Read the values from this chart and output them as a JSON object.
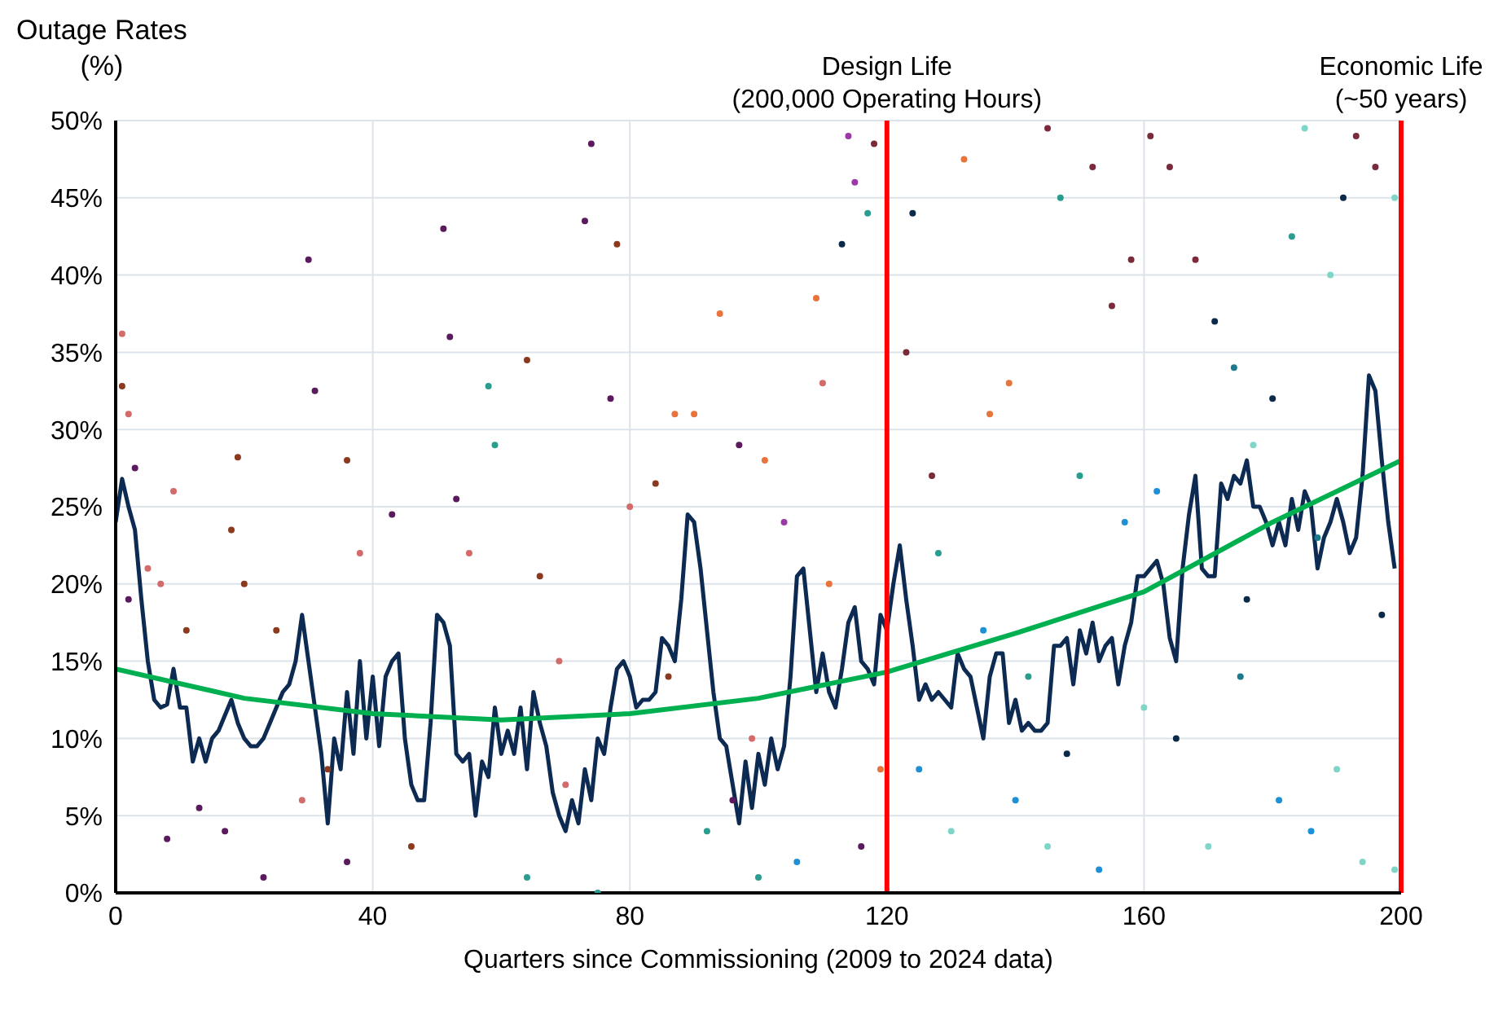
{
  "chart_data": {
    "type": "scatter",
    "ylabel": "Outage Rates\n(%)",
    "xlabel": "Quarters since Commissioning (2009 to 2024 data)",
    "xlim": [
      0,
      200
    ],
    "xticks": [
      0,
      40,
      80,
      120,
      160,
      200
    ],
    "ylim": [
      0,
      50
    ],
    "yticks": [
      {
        "value": 0,
        "label": "0%"
      },
      {
        "value": 5,
        "label": "5%"
      },
      {
        "value": 10,
        "label": "10%"
      },
      {
        "value": 15,
        "label": "15%"
      },
      {
        "value": 20,
        "label": "20%"
      },
      {
        "value": 25,
        "label": "25%"
      },
      {
        "value": 30,
        "label": "30%"
      },
      {
        "value": 35,
        "label": "35%"
      },
      {
        "value": 40,
        "label": "40%"
      },
      {
        "value": 45,
        "label": "45%"
      },
      {
        "value": 50,
        "label": "50%"
      }
    ],
    "grid": true,
    "ref_lines": [
      {
        "axis": "x",
        "value": 120,
        "label": "Design Life\n(200,000 Operating Hours)",
        "color": "#ff0000"
      },
      {
        "axis": "x",
        "value": 200,
        "label": "Economic Life\n(~50 years)",
        "color": "#ff0000"
      }
    ],
    "series": [
      {
        "marker": "circle",
        "x": [
          1,
          1,
          2,
          3,
          2,
          5,
          7,
          9,
          11,
          8,
          13,
          17,
          19,
          18,
          20,
          23,
          25,
          30,
          31,
          33,
          36,
          38,
          29,
          36,
          43,
          46,
          51,
          52,
          53,
          55,
          58,
          59,
          64,
          66,
          69,
          73,
          74,
          77,
          78,
          80,
          64,
          75,
          70,
          84,
          87,
          90,
          94,
          97,
          101,
          104,
          109,
          110,
          113,
          114,
          115,
          117,
          118,
          111,
          99,
          92,
          100,
          106,
          116,
          119,
          96,
          86,
          124,
          127,
          123,
          132,
          136,
          139,
          145,
          147,
          152,
          150,
          155,
          158,
          140,
          130,
          125,
          135,
          142,
          148,
          153,
          160,
          128,
          157,
          145,
          161,
          164,
          168,
          171,
          174,
          177,
          180,
          183,
          185,
          189,
          191,
          193,
          196,
          199,
          165,
          170,
          175,
          181,
          186,
          190,
          194,
          197,
          176,
          162,
          187,
          199
        ],
        "values": [
          36.2,
          32.8,
          31,
          27.5,
          19,
          21,
          20,
          26,
          17,
          3.5,
          5.5,
          4,
          28.2,
          23.5,
          20,
          1,
          17,
          41,
          32.5,
          8,
          28,
          22,
          6,
          2,
          24.5,
          3,
          43,
          36,
          25.5,
          22,
          32.8,
          29,
          34.5,
          20.5,
          15,
          43.5,
          48.5,
          32,
          42,
          25,
          1,
          0,
          7,
          26.5,
          31,
          31,
          37.5,
          29,
          28,
          24,
          38.5,
          33,
          42,
          49,
          46,
          44,
          48.5,
          20,
          10,
          4,
          1,
          2,
          3,
          8,
          6,
          14,
          44,
          27,
          35,
          47.5,
          31,
          33,
          49.5,
          45,
          47,
          27,
          38,
          41,
          6,
          4,
          8,
          17,
          14,
          9,
          1.5,
          12,
          22,
          24,
          3,
          49,
          47,
          41,
          37,
          34,
          29,
          32,
          42.5,
          49.5,
          40,
          45,
          49,
          47,
          45,
          10,
          3,
          14,
          6,
          4,
          8,
          2,
          18,
          19,
          26,
          23,
          1.5
        ],
        "colors": [
          "#d36b6b",
          "#8b3a1e",
          "#d36b6b",
          "#5b1a5e",
          "#5b1a5e",
          "#d36b6b",
          "#d36b6b",
          "#d36b6b",
          "#8b3a1e",
          "#5b1a5e",
          "#5b1a5e",
          "#5b1a5e",
          "#8b3a1e",
          "#8b3a1e",
          "#8b3a1e",
          "#5b1a5e",
          "#8b3a1e",
          "#5b1a5e",
          "#5b1a5e",
          "#8b3a1e",
          "#8b3a1e",
          "#d36b6b",
          "#d36b6b",
          "#5b1a5e",
          "#5b1a5e",
          "#8b3a1e",
          "#5b1a5e",
          "#5b1a5e",
          "#5b1a5e",
          "#d36b6b",
          "#2a9d8f",
          "#2a9d8f",
          "#8b3a1e",
          "#8b3a1e",
          "#d36b6b",
          "#5b1a5e",
          "#5b1a5e",
          "#5b1a5e",
          "#8b3a1e",
          "#d36b6b",
          "#2a9d8f",
          "#2a9d8f",
          "#d36b6b",
          "#8b3a1e",
          "#e8743b",
          "#e8743b",
          "#e8743b",
          "#5b1a5e",
          "#e8743b",
          "#9b3aa6",
          "#e8743b",
          "#d36b6b",
          "#0b2a4a",
          "#9b3aa6",
          "#9b3aa6",
          "#2a9d8f",
          "#7a2a3a",
          "#e8743b",
          "#d36b6b",
          "#2a9d8f",
          "#2a9d8f",
          "#1e90d6",
          "#5b1a5e",
          "#e8743b",
          "#5b1a5e",
          "#8b3a1e",
          "#0b2a4a",
          "#7a2a3a",
          "#7a2a3a",
          "#e8743b",
          "#e8743b",
          "#e8743b",
          "#7a2a3a",
          "#2a9d8f",
          "#7a2a3a",
          "#2a9d8f",
          "#7a2a3a",
          "#7a2a3a",
          "#1e90d6",
          "#7fd6c8",
          "#1e90d6",
          "#1e90d6",
          "#2a9d8f",
          "#0b2a4a",
          "#1e90d6",
          "#7fd6c8",
          "#2a9d8f",
          "#1e90d6",
          "#7fd6c8",
          "#7a2a3a",
          "#7a2a3a",
          "#7a2a3a",
          "#0b2a4a",
          "#1b7a8c",
          "#7fd6c8",
          "#0b2a4a",
          "#2a9d8f",
          "#7fd6c8",
          "#7fd6c8",
          "#0b2a4a",
          "#7a2a3a",
          "#7a2a3a",
          "#7fd6c8",
          "#0b2a4a",
          "#7fd6c8",
          "#1b7a8c",
          "#1e90d6",
          "#1e90d6",
          "#7fd6c8",
          "#7fd6c8",
          "#0b2a4a",
          "#0b2a4a",
          "#1e90d6",
          "#1b7a8c",
          "#7fd6c8"
        ]
      },
      {
        "type": "line",
        "marker": "none",
        "color": "#0d2b52",
        "x": [
          0,
          1,
          2,
          3,
          4,
          5,
          6,
          7,
          8,
          9,
          10,
          11,
          12,
          13,
          14,
          15,
          16,
          17,
          18,
          19,
          20,
          21,
          22,
          23,
          24,
          25,
          26,
          27,
          28,
          29,
          30,
          31,
          32,
          33,
          34,
          35,
          36,
          37,
          38,
          39,
          40,
          41,
          42,
          43,
          44,
          45,
          46,
          47,
          48,
          49,
          50,
          51,
          52,
          53,
          54,
          55,
          56,
          57,
          58,
          59,
          60,
          61,
          62,
          63,
          64,
          65,
          66,
          67,
          68,
          69,
          70,
          71,
          72,
          73,
          74,
          75,
          76,
          77,
          78,
          79,
          80,
          81,
          82,
          83,
          84,
          85,
          86,
          87,
          88,
          89,
          90,
          91,
          92,
          93,
          94,
          95,
          96,
          97,
          98,
          99,
          100,
          101,
          102,
          103,
          104,
          105,
          106,
          107,
          108,
          109,
          110,
          111,
          112,
          113,
          114,
          115,
          116,
          117,
          118,
          119,
          120,
          121,
          122,
          123,
          124,
          125,
          126,
          127,
          128,
          129,
          130,
          131,
          132,
          133,
          134,
          135,
          136,
          137,
          138,
          139,
          140,
          141,
          142,
          143,
          144,
          145,
          146,
          147,
          148,
          149,
          150,
          151,
          152,
          153,
          154,
          155,
          156,
          157,
          158,
          159,
          160,
          161,
          162,
          163,
          164,
          165,
          166,
          167,
          168,
          169,
          170,
          171,
          172,
          173,
          174,
          175,
          176,
          177,
          178,
          179,
          180,
          181,
          182,
          183,
          184,
          185,
          186,
          187,
          188,
          189,
          190,
          191,
          192,
          193,
          194,
          195,
          196,
          197,
          198,
          199
        ],
        "values": [
          24,
          26.8,
          25,
          23.5,
          19,
          15,
          12.5,
          12,
          12.2,
          14.5,
          12,
          12,
          8.5,
          10,
          8.5,
          10,
          10.5,
          11.5,
          12.5,
          11,
          10,
          9.5,
          9.5,
          10,
          11,
          12,
          13,
          13.5,
          15,
          18,
          15,
          12,
          9,
          4.5,
          10,
          8,
          13,
          9,
          15,
          10,
          14,
          9.5,
          14,
          15,
          15.5,
          10,
          7,
          6,
          6,
          11,
          18,
          17.5,
          16,
          9,
          8.5,
          9,
          5,
          8.5,
          7.5,
          12,
          9,
          10.5,
          9,
          12,
          8,
          13,
          11,
          9.5,
          6.5,
          5,
          4,
          6,
          4.5,
          8,
          6,
          10,
          9,
          12,
          14.5,
          15,
          14,
          12,
          12.5,
          12.5,
          13,
          16.5,
          16,
          15,
          19,
          24.5,
          24,
          21,
          17,
          13,
          10,
          9.5,
          7,
          4.5,
          8.5,
          5.5,
          9,
          7,
          10,
          8,
          9.5,
          14,
          20.5,
          21,
          17,
          13,
          15.5,
          13,
          12,
          14.5,
          17.5,
          18.5,
          15,
          14.5,
          13.5,
          18,
          17,
          20,
          22.5,
          19,
          16,
          12.5,
          13.5,
          12.5,
          13,
          12.5,
          12,
          15.5,
          14.5,
          14,
          12,
          10,
          14,
          15.5,
          15.5,
          11,
          12.5,
          10.5,
          11,
          10.5,
          10.5,
          11,
          16,
          16,
          16.5,
          13.5,
          17,
          15.5,
          17.5,
          15,
          16,
          16.5,
          13.5,
          16,
          17.5,
          20.5,
          20.5,
          21,
          21.5,
          20,
          16.5,
          15,
          21,
          24.5,
          27,
          21,
          20.5,
          20.5,
          26.5,
          25.5,
          27,
          26.5,
          28,
          25,
          25,
          24,
          22.5,
          24,
          22.5,
          25.5,
          23.5,
          26,
          25,
          21,
          23,
          24,
          25.5,
          24,
          22,
          23,
          27,
          33.5,
          32.5,
          28,
          24,
          21
        ]
      },
      {
        "type": "line",
        "marker": "none",
        "color": "#00b050",
        "x": [
          0,
          20,
          40,
          60,
          80,
          100,
          120,
          140,
          160,
          180,
          200
        ],
        "values": [
          14.5,
          12.6,
          11.6,
          11.2,
          11.6,
          12.6,
          14.3,
          16.8,
          19.5,
          24,
          28
        ]
      }
    ]
  }
}
